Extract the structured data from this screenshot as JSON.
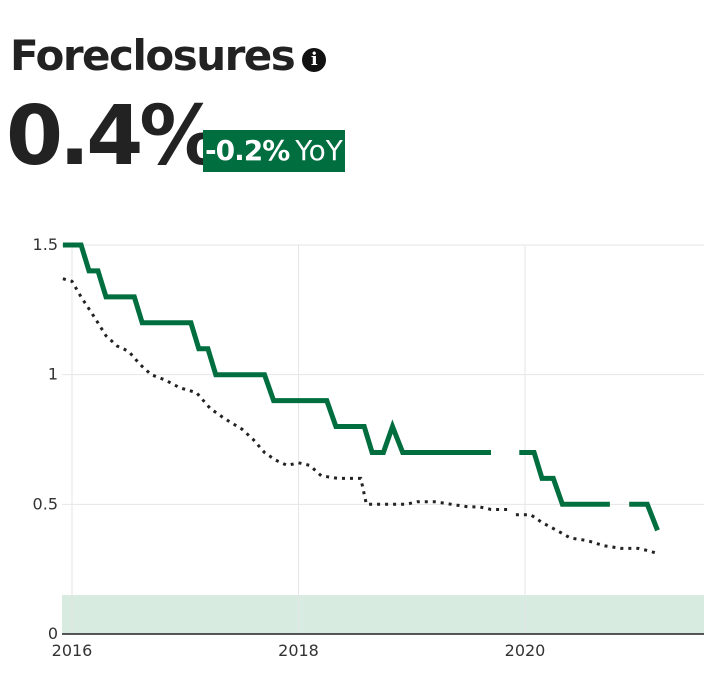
{
  "header": {
    "title": "Foreclosures",
    "info_icon": "info-icon",
    "value": "0.4%",
    "change_value": "-0.2%",
    "change_unit": "YoY",
    "change_color": "#006e3f"
  },
  "chart_data": {
    "type": "line",
    "title": "",
    "xlabel": "",
    "ylabel": "",
    "xlim": [
      2015.9,
      2021.6
    ],
    "ylim": [
      0,
      1.5
    ],
    "x_ticks": [
      2016,
      2018,
      2020
    ],
    "x_tick_labels": [
      "2016",
      "2018",
      "2020"
    ],
    "y_ticks": [
      0,
      0.5,
      1,
      1.5
    ],
    "y_tick_labels": [
      "0",
      "0.5",
      "1",
      "1.5"
    ],
    "grid": true,
    "legend": "none",
    "recession_band": {
      "y_range": [
        0,
        0.15
      ],
      "color": "#d7ebe0"
    },
    "series": [
      {
        "color": "#006e3f",
        "style": "solid",
        "points": [
          [
            2015.92,
            1.5
          ],
          [
            2016.08,
            1.5
          ],
          [
            2016.15,
            1.4
          ],
          [
            2016.23,
            1.4
          ],
          [
            2016.3,
            1.3
          ],
          [
            2016.55,
            1.3
          ],
          [
            2016.62,
            1.2
          ],
          [
            2017.05,
            1.2
          ],
          [
            2017.12,
            1.1
          ],
          [
            2017.2,
            1.1
          ],
          [
            2017.27,
            1.0
          ],
          [
            2017.7,
            1.0
          ],
          [
            2017.78,
            0.9
          ],
          [
            2018.25,
            0.9
          ],
          [
            2018.33,
            0.8
          ],
          [
            2018.58,
            0.8
          ],
          [
            2018.65,
            0.7
          ],
          [
            2018.75,
            0.7
          ],
          [
            2018.83,
            0.8
          ],
          [
            2018.92,
            0.7
          ],
          [
            2019.7,
            0.7
          ],
          null,
          [
            2019.95,
            0.7
          ],
          [
            2020.08,
            0.7
          ],
          [
            2020.15,
            0.6
          ],
          [
            2020.25,
            0.6
          ],
          [
            2020.33,
            0.5
          ],
          [
            2020.75,
            0.5
          ],
          null,
          [
            2020.92,
            0.5
          ],
          [
            2021.08,
            0.5
          ],
          [
            2021.17,
            0.4
          ]
        ]
      },
      {
        "color": "#222222",
        "style": "dotted",
        "points": [
          [
            2015.92,
            1.37
          ],
          [
            2016.0,
            1.36
          ],
          [
            2016.08,
            1.3
          ],
          [
            2016.2,
            1.22
          ],
          [
            2016.3,
            1.15
          ],
          [
            2016.4,
            1.11
          ],
          [
            2016.5,
            1.09
          ],
          [
            2016.6,
            1.04
          ],
          [
            2016.7,
            1.0
          ],
          [
            2016.82,
            0.98
          ],
          [
            2016.95,
            0.95
          ],
          [
            2017.1,
            0.93
          ],
          [
            2017.22,
            0.87
          ],
          [
            2017.35,
            0.83
          ],
          [
            2017.5,
            0.79
          ],
          [
            2017.6,
            0.75
          ],
          [
            2017.7,
            0.7
          ],
          [
            2017.8,
            0.67
          ],
          [
            2017.9,
            0.65
          ],
          [
            2018.0,
            0.66
          ],
          [
            2018.1,
            0.65
          ],
          [
            2018.2,
            0.61
          ],
          [
            2018.35,
            0.6
          ],
          [
            2018.55,
            0.6
          ],
          [
            2018.6,
            0.5
          ],
          [
            2018.8,
            0.5
          ],
          [
            2018.95,
            0.5
          ],
          [
            2019.05,
            0.51
          ],
          [
            2019.2,
            0.51
          ],
          [
            2019.35,
            0.5
          ],
          [
            2019.5,
            0.49
          ],
          [
            2019.6,
            0.49
          ],
          [
            2019.7,
            0.48
          ],
          [
            2019.85,
            0.48
          ],
          null,
          [
            2019.92,
            0.46
          ],
          [
            2020.05,
            0.46
          ],
          [
            2020.15,
            0.43
          ],
          [
            2020.28,
            0.4
          ],
          [
            2020.4,
            0.37
          ],
          [
            2020.55,
            0.36
          ],
          [
            2020.7,
            0.34
          ],
          [
            2020.85,
            0.33
          ],
          [
            2021.0,
            0.33
          ],
          [
            2021.1,
            0.32
          ],
          [
            2021.17,
            0.31
          ]
        ]
      }
    ]
  }
}
